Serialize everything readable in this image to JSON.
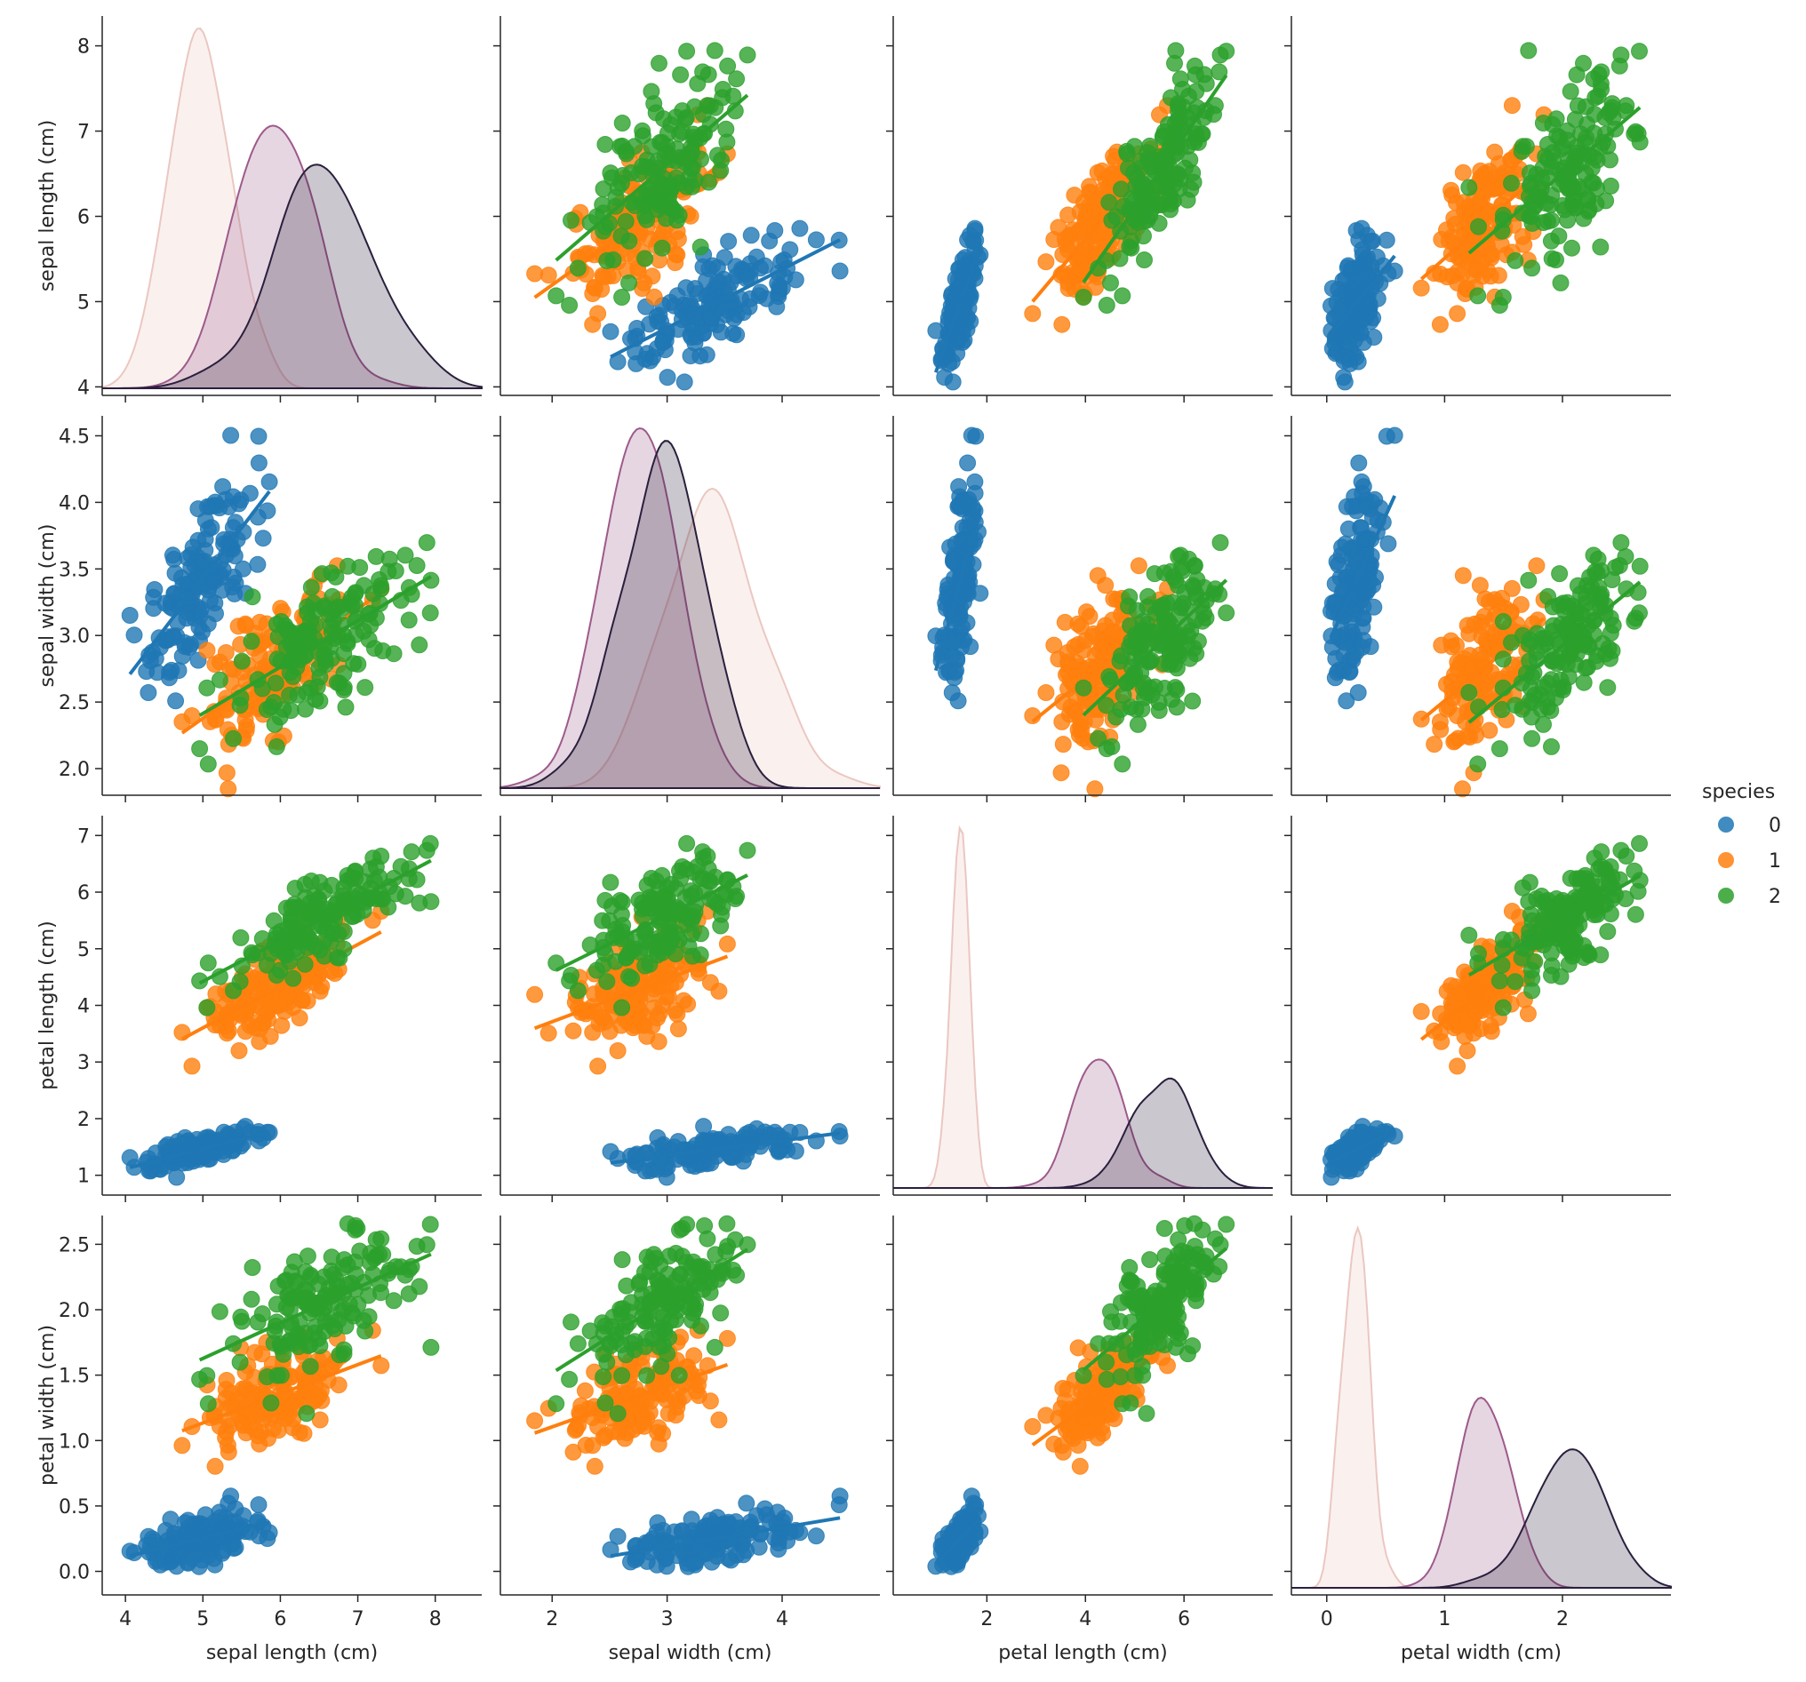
{
  "chart_data": {
    "type": "scatter",
    "subtype": "pairplot",
    "variables": [
      {
        "name": "sepal length (cm)",
        "lim": [
          3.9,
          8.35
        ],
        "ticks": [
          4,
          5,
          6,
          7,
          8
        ],
        "xlim": [
          3.7,
          8.6
        ],
        "xticks": [
          4,
          5,
          6,
          7,
          8
        ]
      },
      {
        "name": "sepal width (cm)",
        "lim": [
          1.8,
          4.65
        ],
        "ticks": [
          2.0,
          2.5,
          3.0,
          3.5,
          4.0,
          4.5
        ],
        "xlim": [
          1.55,
          4.85
        ],
        "xticks": [
          2,
          3,
          4
        ]
      },
      {
        "name": "petal length (cm)",
        "lim": [
          0.65,
          7.35
        ],
        "ticks": [
          1,
          2,
          3,
          4,
          5,
          6,
          7
        ],
        "xlim": [
          0.1,
          7.8
        ],
        "xticks": [
          2,
          4,
          6
        ]
      },
      {
        "name": "petal width (cm)",
        "lim": [
          -0.18,
          2.72
        ],
        "ticks": [
          0.0,
          0.5,
          1.0,
          1.5,
          2.0,
          2.5
        ],
        "xlim": [
          -0.3,
          2.92
        ],
        "xticks": [
          0,
          1,
          2
        ]
      }
    ],
    "tick_format": [
      [
        "4",
        "5",
        "6",
        "7",
        "8"
      ],
      [
        "2.0",
        "2.5",
        "3.0",
        "3.5",
        "4.0",
        "4.5"
      ],
      [
        "1",
        "2",
        "3",
        "4",
        "5",
        "6",
        "7"
      ],
      [
        "0.0",
        "0.5",
        "1.0",
        "1.5",
        "2.0",
        "2.5"
      ]
    ],
    "xtick_format": [
      [
        "4",
        "5",
        "6",
        "7",
        "8"
      ],
      [
        "2",
        "3",
        "4"
      ],
      [
        "2",
        "4",
        "6"
      ],
      [
        "0",
        "1",
        "2"
      ]
    ],
    "legend": {
      "title": "species",
      "placement": "right",
      "entries": [
        {
          "label": "0",
          "color": "#1f77b4"
        },
        {
          "label": "1",
          "color": "#ff7f0e"
        },
        {
          "label": "2",
          "color": "#2ca02c"
        }
      ]
    },
    "kde_colors": {
      "0": "#ebc7c1",
      "1": "#9d5a8a",
      "2": "#2a1f3d"
    },
    "species_stats": [
      {
        "label": "0",
        "mean": [
          5.01,
          3.43,
          1.46,
          0.25
        ],
        "sd": [
          0.35,
          0.38,
          0.17,
          0.11
        ]
      },
      {
        "label": "1",
        "mean": [
          5.94,
          2.77,
          4.26,
          1.33
        ],
        "sd": [
          0.52,
          0.31,
          0.47,
          0.2
        ]
      },
      {
        "label": "2",
        "mean": [
          6.59,
          2.97,
          5.55,
          2.03
        ],
        "sd": [
          0.64,
          0.32,
          0.55,
          0.27
        ]
      }
    ],
    "grid": false
  }
}
